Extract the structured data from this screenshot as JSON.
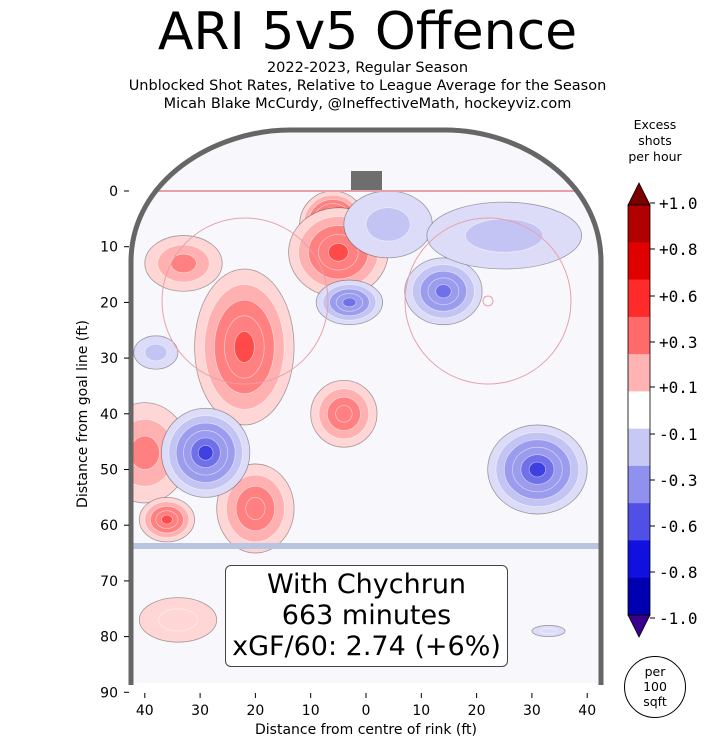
{
  "title": "ARI 5v5 Offence",
  "subtitle_lines": [
    "2022-2023, Regular Season",
    "Unblocked Shot Rates, Relative to League Average for the Season",
    "Micah Blake McCurdy, @IneffectiveMath, hockeyviz.com"
  ],
  "info_box": {
    "line1": "With Chychrun",
    "line2": "663 minutes",
    "line3": "xGF/60: 2.74 (+6%)"
  },
  "per_note": [
    "per",
    "100",
    "sqft"
  ],
  "colorbar": {
    "title_lines": [
      "Excess",
      "shots",
      "per hour"
    ],
    "tick_labels": [
      "+1.0",
      "+0.8",
      "+0.6",
      "+0.3",
      "+0.1",
      "-0.1",
      "-0.3",
      "-0.6",
      "-0.8",
      "-1.0"
    ],
    "colors": [
      "#7a0000",
      "#b00000",
      "#e00000",
      "#ff2a2a",
      "#ff6a6a",
      "#ffb3b3",
      "#ffffff",
      "#c8c8f4",
      "#9090ee",
      "#5050e6",
      "#1010e0",
      "#0000b0",
      "#3a0090"
    ]
  },
  "chart_data": {
    "type": "heatmap",
    "title": "ARI 5v5 Offence",
    "xlabel": "Distance from centre of rink (ft)",
    "ylabel": "Distance from goal line (ft)",
    "x_ticks": [
      "40",
      "30",
      "20",
      "10",
      "0",
      "10",
      "20",
      "30",
      "40"
    ],
    "y_ticks": [
      "0",
      "10",
      "20",
      "30",
      "40",
      "50",
      "60",
      "70",
      "80",
      "90"
    ],
    "xlim": [
      -42.5,
      42.5
    ],
    "ylim": [
      0,
      90
    ],
    "color_range": [
      -1.0,
      1.0
    ],
    "contour_blobs": [
      {
        "x": -6,
        "y": 6,
        "value": 0.8,
        "rx": 6,
        "ry": 6
      },
      {
        "x": -5,
        "y": 11,
        "value": 0.5,
        "rx": 9,
        "ry": 8
      },
      {
        "x": -22,
        "y": 25,
        "value": 0.8,
        "rx": 6,
        "ry": 8
      },
      {
        "x": -22,
        "y": 28,
        "value": 0.5,
        "rx": 9,
        "ry": 14
      },
      {
        "x": -33,
        "y": 13,
        "value": 0.3,
        "rx": 7,
        "ry": 5
      },
      {
        "x": -40,
        "y": 44,
        "value": 0.7,
        "rx": 5,
        "ry": 5
      },
      {
        "x": -40,
        "y": 47,
        "value": 0.3,
        "rx": 8,
        "ry": 9
      },
      {
        "x": -36,
        "y": 59,
        "value": 0.5,
        "rx": 5,
        "ry": 4
      },
      {
        "x": -20,
        "y": 57,
        "value": 0.4,
        "rx": 7,
        "ry": 8
      },
      {
        "x": -4,
        "y": 40,
        "value": 0.4,
        "rx": 6,
        "ry": 6
      },
      {
        "x": -34,
        "y": 77,
        "value": 0.1,
        "rx": 7,
        "ry": 4
      },
      {
        "x": -3,
        "y": 20,
        "value": -0.5,
        "rx": 6,
        "ry": 4
      },
      {
        "x": 14,
        "y": 18,
        "value": -0.5,
        "rx": 7,
        "ry": 6
      },
      {
        "x": 4,
        "y": 6,
        "value": -0.2,
        "rx": 8,
        "ry": 6
      },
      {
        "x": 25,
        "y": 8,
        "value": -0.2,
        "rx": 14,
        "ry": 6
      },
      {
        "x": -29,
        "y": 47,
        "value": -0.6,
        "rx": 8,
        "ry": 8
      },
      {
        "x": 31,
        "y": 50,
        "value": -0.6,
        "rx": 9,
        "ry": 8
      },
      {
        "x": -38,
        "y": 29,
        "value": -0.2,
        "rx": 4,
        "ry": 3
      },
      {
        "x": 33,
        "y": 79,
        "value": -0.1,
        "rx": 3,
        "ry": 1
      }
    ]
  }
}
